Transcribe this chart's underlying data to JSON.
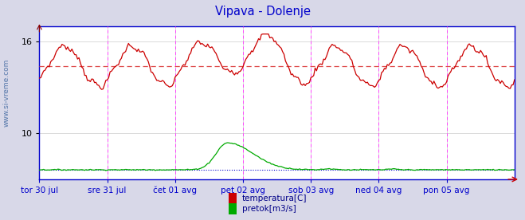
{
  "title": "Vipava - Dolenje",
  "title_color": "#0000cc",
  "bg_color": "#d8d8e8",
  "plot_bg_color": "#ffffff",
  "xtick_labels": [
    "tor 30 jul",
    "sre 31 jul",
    "čet 01 avg",
    "pet 02 avg",
    "sob 03 avg",
    "ned 04 avg",
    "pon 05 avg"
  ],
  "xtick_positions": [
    0,
    48,
    96,
    144,
    192,
    240,
    288
  ],
  "temp_avg": 14.4,
  "flow_avg": 0.28,
  "grid_color": "#cccccc",
  "vline_color_magenta": "#ff44ff",
  "watermark": "www.si-vreme.com",
  "watermark_color": "#5577aa",
  "legend_temp_color": "#cc0000",
  "legend_flow_color": "#00aa00",
  "temp_line_color": "#cc0000",
  "flow_line_color": "#00aa00",
  "temp_avg_color": "#dd4444",
  "flow_avg_color": "#0000cc",
  "n_points": 337,
  "ylim_temp_lo": 7,
  "ylim_temp_hi": 17,
  "flow_scale_max": 12,
  "yticks": [
    10,
    16
  ]
}
